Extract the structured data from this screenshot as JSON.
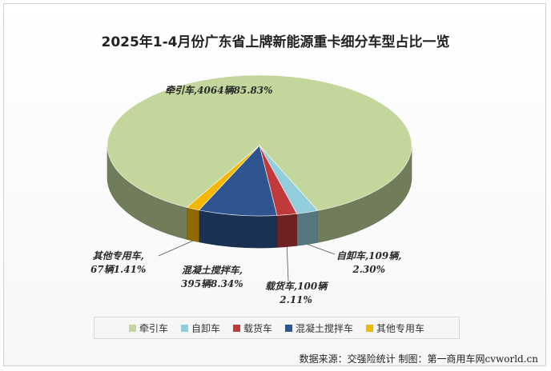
{
  "chart_data": {
    "type": "pie",
    "title": "2025年1-4月份广东省上牌新能源重卡细分车型占比一览",
    "series": [
      {
        "name": "牵引车",
        "count": 4064,
        "unit": "辆",
        "percent": 85.83,
        "color": "#c3d69b"
      },
      {
        "name": "自卸车",
        "count": 109,
        "unit": "辆",
        "percent": 2.3,
        "color": "#92cddc"
      },
      {
        "name": "载货车",
        "count": 100,
        "unit": "辆",
        "percent": 2.11,
        "color": "#c0393b"
      },
      {
        "name": "混凝土搅拌车",
        "count": 395,
        "unit": "辆",
        "percent": 8.34,
        "color": "#2e5590"
      },
      {
        "name": "其他专用车",
        "count": 67,
        "unit": "辆",
        "percent": 1.41,
        "color": "#f5b800"
      }
    ],
    "legend_position": "bottom"
  },
  "labels": {
    "tractor": "牵引车,4064辆85.83%",
    "dump_line1": "自卸车,109辆,",
    "dump_line2": "2.30%",
    "cargo_line1": "载货车,100辆",
    "cargo_line2": "2.11%",
    "mixer_line1": "混凝土搅拌车,",
    "mixer_line2": "395辆8.34%",
    "other_line1": "其他专用车,",
    "other_line2": "67辆1.41%"
  },
  "source": "数据来源：交强险统计 制图：第一商用车网cvworld.cn"
}
